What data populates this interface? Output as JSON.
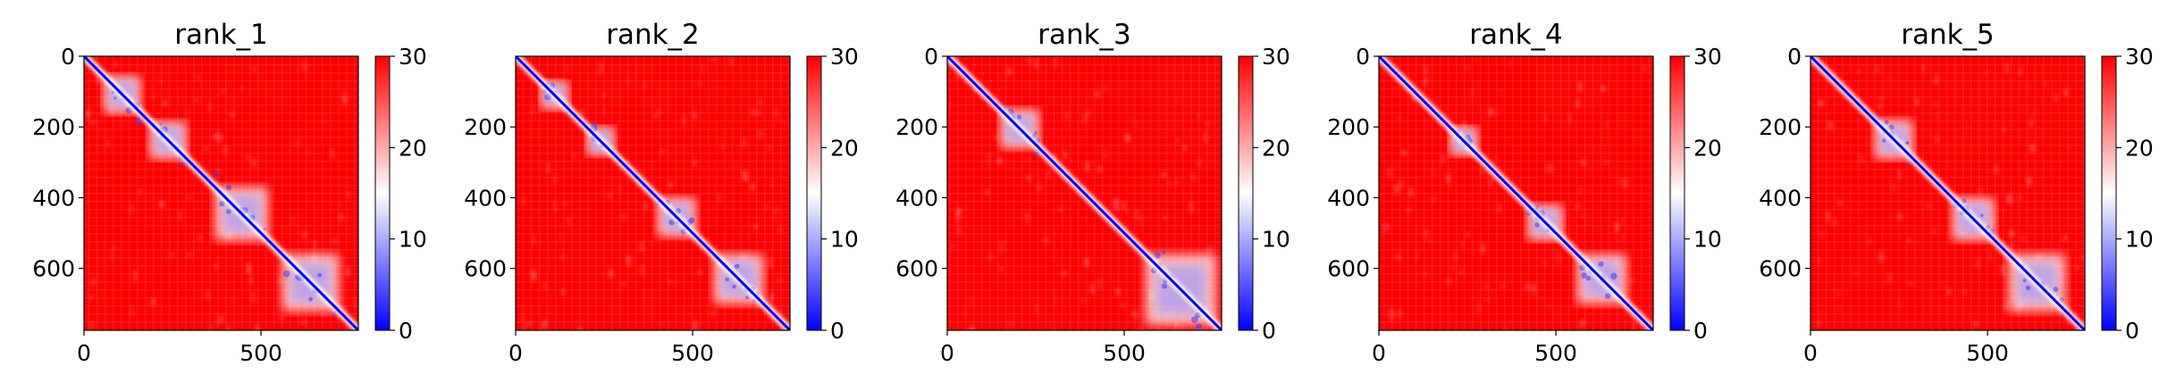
{
  "chart_data": [
    {
      "type": "heatmap",
      "title": "rank_1",
      "xlabel": "",
      "ylabel": "",
      "x_ticks": [
        "0",
        "500"
      ],
      "y_ticks": [
        "0",
        "200",
        "400",
        "600"
      ],
      "x_tick_values": [
        0,
        500
      ],
      "y_tick_values": [
        0,
        200,
        400,
        600
      ],
      "xlim": [
        0,
        775
      ],
      "ylim": [
        775,
        0
      ],
      "colorbar": {
        "ticks": [
          "0",
          "10",
          "20",
          "30"
        ],
        "tick_values": [
          0,
          10,
          20,
          30
        ],
        "range": [
          0,
          30
        ],
        "colors": [
          "#0000ff",
          "#ffffff",
          "#ff0000"
        ]
      },
      "diagonal_blocks": [
        {
          "start": 55,
          "end": 160
        },
        {
          "start": 185,
          "end": 290
        },
        {
          "start": 370,
          "end": 520
        },
        {
          "start": 560,
          "end": 720
        }
      ]
    },
    {
      "type": "heatmap",
      "title": "rank_2",
      "xlabel": "",
      "ylabel": "",
      "x_ticks": [
        "0",
        "500"
      ],
      "y_ticks": [
        "200",
        "400",
        "600"
      ],
      "x_tick_values": [
        0,
        500
      ],
      "y_tick_values": [
        200,
        400,
        600
      ],
      "xlim": [
        0,
        775
      ],
      "ylim": [
        775,
        0
      ],
      "colorbar": {
        "ticks": [
          "0",
          "10",
          "20",
          "30"
        ],
        "tick_values": [
          0,
          10,
          20,
          30
        ],
        "range": [
          0,
          30
        ],
        "colors": [
          "#0000ff",
          "#ffffff",
          "#ff0000"
        ]
      },
      "diagonal_blocks": [
        {
          "start": 70,
          "end": 150
        },
        {
          "start": 200,
          "end": 280
        },
        {
          "start": 400,
          "end": 510
        },
        {
          "start": 560,
          "end": 700
        }
      ]
    },
    {
      "type": "heatmap",
      "title": "rank_3",
      "xlabel": "",
      "ylabel": "",
      "x_ticks": [
        "0",
        "500"
      ],
      "y_ticks": [
        "0",
        "200",
        "400",
        "600"
      ],
      "x_tick_values": [
        0,
        500
      ],
      "y_tick_values": [
        0,
        200,
        400,
        600
      ],
      "xlim": [
        0,
        775
      ],
      "ylim": [
        775,
        0
      ],
      "colorbar": {
        "ticks": [
          "0",
          "10",
          "20",
          "30"
        ],
        "tick_values": [
          0,
          10,
          20,
          30
        ],
        "range": [
          0,
          30
        ],
        "colors": [
          "#0000ff",
          "#ffffff",
          "#ff0000"
        ]
      },
      "diagonal_blocks": [
        {
          "start": 150,
          "end": 260
        },
        {
          "start": 560,
          "end": 760
        }
      ]
    },
    {
      "type": "heatmap",
      "title": "rank_4",
      "xlabel": "",
      "ylabel": "",
      "x_ticks": [
        "0",
        "500"
      ],
      "y_ticks": [
        "0",
        "200",
        "400",
        "600"
      ],
      "x_tick_values": [
        0,
        500
      ],
      "y_tick_values": [
        0,
        200,
        400,
        600
      ],
      "xlim": [
        0,
        775
      ],
      "ylim": [
        775,
        0
      ],
      "colorbar": {
        "ticks": [
          "0",
          "10",
          "20",
          "30"
        ],
        "tick_values": [
          0,
          10,
          20,
          30
        ],
        "range": [
          0,
          30
        ],
        "colors": [
          "#0000ff",
          "#ffffff",
          "#ff0000"
        ]
      },
      "diagonal_blocks": [
        {
          "start": 200,
          "end": 280
        },
        {
          "start": 420,
          "end": 520
        },
        {
          "start": 560,
          "end": 700
        }
      ]
    },
    {
      "type": "heatmap",
      "title": "rank_5",
      "xlabel": "",
      "ylabel": "",
      "x_ticks": [
        "0",
        "500"
      ],
      "y_ticks": [
        "0",
        "200",
        "400",
        "600"
      ],
      "x_tick_values": [
        0,
        500
      ],
      "y_tick_values": [
        0,
        200,
        400,
        600
      ],
      "xlim": [
        0,
        775
      ],
      "ylim": [
        775,
        0
      ],
      "colorbar": {
        "ticks": [
          "0",
          "10",
          "20",
          "30"
        ],
        "tick_values": [
          0,
          10,
          20,
          30
        ],
        "range": [
          0,
          30
        ],
        "colors": [
          "#0000ff",
          "#ffffff",
          "#ff0000"
        ]
      },
      "diagonal_blocks": [
        {
          "start": 180,
          "end": 290
        },
        {
          "start": 400,
          "end": 520
        },
        {
          "start": 560,
          "end": 720
        }
      ]
    }
  ]
}
